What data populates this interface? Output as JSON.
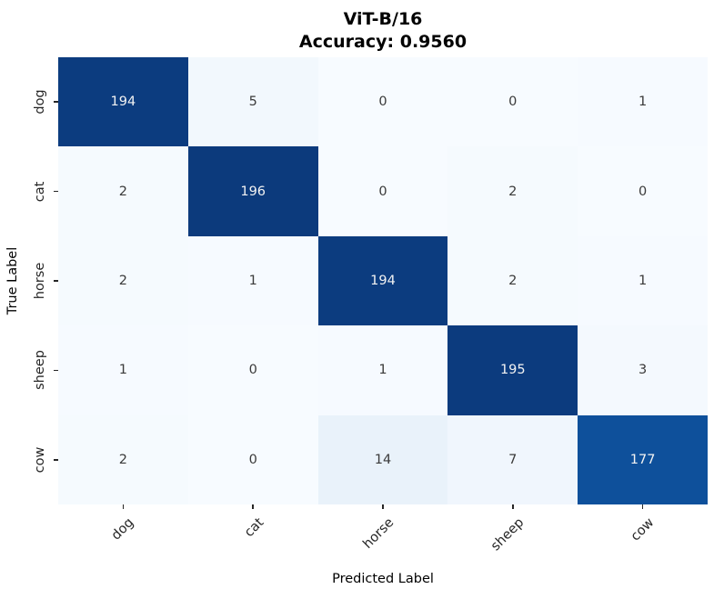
{
  "figure": {
    "title": "ViT-B/16",
    "subtitle": "Accuracy: 0.9560"
  },
  "chart_data": {
    "type": "heatmap",
    "title": "ViT-B/16",
    "subtitle": "Accuracy: 0.9560",
    "accuracy": 0.956,
    "xlabel": "Predicted Label",
    "ylabel": "True Label",
    "x_categories": [
      "dog",
      "cat",
      "horse",
      "sheep",
      "cow"
    ],
    "y_categories": [
      "dog",
      "cat",
      "horse",
      "sheep",
      "cow"
    ],
    "matrix": [
      [
        194,
        5,
        0,
        0,
        1
      ],
      [
        2,
        196,
        0,
        2,
        0
      ],
      [
        2,
        1,
        194,
        2,
        1
      ],
      [
        1,
        0,
        1,
        195,
        3
      ],
      [
        2,
        0,
        14,
        7,
        177
      ]
    ],
    "vmin": 0,
    "vmax": 196,
    "colormap": "Blues",
    "colormap_stops": [
      "#f7fbff",
      "#deebf7",
      "#c6dbef",
      "#9ecae1",
      "#6baed6",
      "#4292c6",
      "#2272b6",
      "#0f56a4",
      "#0c3a7c"
    ],
    "annotation_color_on_light": "#3a3a3a",
    "annotation_color_on_dark": "#f2f2f2",
    "tick_color": "#262626",
    "legend_position": "none",
    "grid": false
  }
}
